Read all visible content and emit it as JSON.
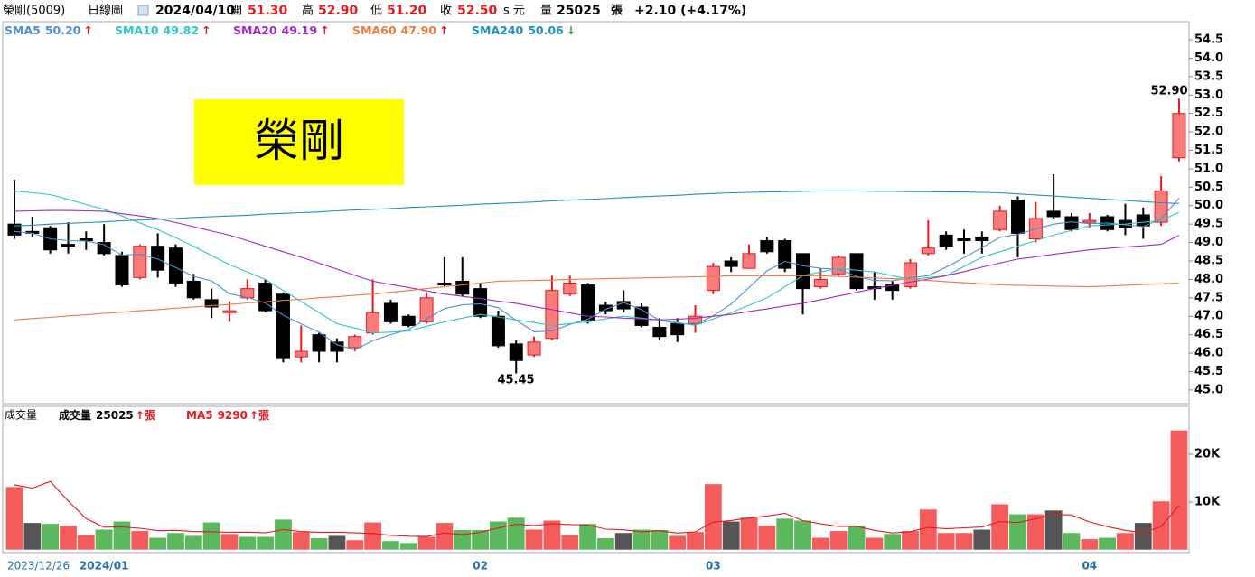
{
  "header": {
    "symbol": "榮剛(5009)",
    "period": "日線圖",
    "date": "2024/04/10",
    "open_label": "開",
    "open": "51.30",
    "high_label": "高",
    "high": "52.90",
    "low_label": "低",
    "low": "51.20",
    "close_label": "收",
    "close": "52.50",
    "currency": "s 元",
    "volume_label": "量",
    "volume": "25025",
    "volume_unit": "張",
    "change": "+2.10 (+4.17%)"
  },
  "chart_data": [
    {
      "type": "candlestick",
      "open": [
        49.5,
        49.3,
        49.4,
        48.95,
        49.1,
        49.0,
        48.65,
        48.05,
        48.9,
        48.85,
        47.95,
        47.45,
        47.1,
        47.5,
        47.9,
        47.6,
        45.9,
        46.5,
        46.3,
        46.15,
        46.55,
        47.35,
        47.0,
        46.85,
        47.9,
        47.95,
        47.75,
        47.0,
        46.25,
        45.95,
        46.4,
        47.6,
        47.85,
        47.3,
        47.4,
        47.25,
        46.7,
        46.8,
        46.8,
        47.7,
        48.5,
        48.3,
        49.05,
        49.05,
        48.7,
        47.8,
        48.15,
        48.7,
        47.8,
        47.85,
        47.8,
        48.7,
        49.2,
        49.1,
        49.15,
        49.35,
        50.15,
        49.1,
        49.85,
        49.7,
        49.55,
        49.7,
        49.6,
        49.75,
        49.55,
        51.3
      ],
      "high": [
        50.7,
        49.7,
        49.45,
        49.55,
        49.3,
        49.5,
        48.75,
        48.95,
        49.25,
        48.95,
        48.15,
        47.75,
        47.4,
        48.0,
        48.0,
        47.65,
        46.75,
        46.55,
        46.4,
        46.5,
        48.0,
        47.45,
        47.05,
        47.65,
        48.6,
        48.6,
        47.9,
        47.15,
        46.35,
        46.45,
        48.1,
        48.1,
        47.9,
        47.4,
        47.7,
        47.35,
        46.95,
        46.95,
        47.3,
        48.45,
        48.6,
        48.95,
        49.15,
        49.1,
        48.7,
        48.3,
        48.65,
        48.7,
        48.2,
        47.95,
        48.55,
        49.6,
        49.3,
        49.35,
        49.3,
        50.0,
        50.25,
        50.1,
        50.85,
        49.8,
        49.8,
        49.75,
        50.05,
        49.95,
        50.8,
        52.9
      ],
      "low": [
        49.1,
        49.15,
        48.7,
        48.7,
        48.8,
        48.65,
        47.8,
        48.0,
        48.05,
        47.8,
        47.45,
        46.95,
        46.85,
        47.45,
        47.1,
        45.75,
        45.75,
        45.75,
        45.75,
        46.05,
        46.5,
        46.8,
        46.7,
        46.8,
        47.8,
        47.55,
        46.95,
        46.15,
        45.45,
        45.9,
        46.35,
        47.55,
        46.8,
        47.05,
        47.1,
        46.7,
        46.35,
        46.3,
        46.55,
        47.6,
        48.2,
        48.3,
        48.7,
        48.2,
        47.05,
        47.75,
        48.1,
        47.7,
        47.45,
        47.45,
        47.75,
        48.65,
        48.8,
        48.7,
        48.7,
        49.3,
        48.6,
        49.0,
        49.65,
        49.3,
        49.4,
        49.3,
        49.2,
        49.1,
        49.45,
        51.2
      ],
      "close": [
        49.2,
        49.25,
        48.8,
        48.9,
        49.05,
        48.7,
        47.85,
        48.9,
        48.25,
        47.9,
        47.5,
        47.25,
        47.15,
        47.75,
        47.15,
        45.85,
        46.05,
        46.05,
        46.05,
        46.45,
        47.1,
        46.85,
        46.75,
        47.5,
        47.85,
        47.6,
        47.0,
        46.2,
        45.8,
        46.3,
        47.7,
        47.9,
        46.9,
        47.15,
        47.2,
        46.75,
        46.45,
        46.5,
        47.0,
        48.35,
        48.35,
        48.7,
        48.75,
        48.3,
        47.75,
        48.0,
        48.6,
        47.75,
        47.75,
        47.7,
        48.45,
        48.85,
        48.9,
        49.05,
        49.05,
        49.85,
        49.25,
        49.65,
        49.7,
        49.35,
        49.6,
        49.35,
        49.4,
        49.45,
        50.4,
        52.5
      ],
      "up_color": "#f87c7c",
      "up_line": "#e8191e",
      "down_color": "#000000",
      "ylim": [
        44.63,
        54.99
      ],
      "yticks": [
        {
          "value": 45,
          "label": "45.0"
        },
        {
          "value": 45.5,
          "label": "45.5"
        },
        {
          "value": 46,
          "label": "46.0"
        },
        {
          "value": 46.5,
          "label": "46.5"
        },
        {
          "value": 47,
          "label": "47.0"
        },
        {
          "value": 47.5,
          "label": "47.5"
        },
        {
          "value": 48,
          "label": "48.0"
        },
        {
          "value": 48.5,
          "label": "48.5"
        },
        {
          "value": 49,
          "label": "49.0"
        },
        {
          "value": 49.5,
          "label": "49.5"
        },
        {
          "value": 50,
          "label": "50.0"
        },
        {
          "value": 50.5,
          "label": "50.5"
        },
        {
          "value": 51,
          "label": "51.0"
        },
        {
          "value": 51.5,
          "label": "51.5"
        },
        {
          "value": 52,
          "label": "52.0"
        },
        {
          "value": 52.5,
          "label": "52.5"
        },
        {
          "value": 53,
          "label": "53.0"
        },
        {
          "value": 53.5,
          "label": "53.5"
        },
        {
          "value": 54,
          "label": "54.0"
        },
        {
          "value": 54.5,
          "label": "54.5"
        }
      ],
      "series": [
        {
          "name": "SMA5",
          "legend_value": "50.20",
          "arrow": "↑",
          "arrow_color": "#e8191e",
          "color": "#4a8fd6",
          "values": [
            49.3,
            49.25,
            49.1,
            49.05,
            49.04,
            48.94,
            48.66,
            48.68,
            48.55,
            48.32,
            48.08,
            47.96,
            47.61,
            47.51,
            47.36,
            47.03,
            46.79,
            46.57,
            46.23,
            46.09,
            46.34,
            46.5,
            46.64,
            46.93,
            47.21,
            47.31,
            47.34,
            47.23,
            46.89,
            46.58,
            46.6,
            46.78,
            46.92,
            47.19,
            47.37,
            47.18,
            46.89,
            46.81,
            46.78,
            47.01,
            47.33,
            47.78,
            48.23,
            48.49,
            48.37,
            48.3,
            48.28,
            48.08,
            47.97,
            47.96,
            48.05,
            48.1,
            48.33,
            48.59,
            48.86,
            49.14,
            49.22,
            49.37,
            49.5,
            49.56,
            49.51,
            49.53,
            49.48,
            49.43,
            49.64,
            50.2
          ]
        },
        {
          "name": "SMA10",
          "legend_value": "49.82",
          "arrow": "↑",
          "arrow_color": "#e8191e",
          "color": "#2cc6c6",
          "values": [
            50.4,
            50.35,
            50.3,
            50.17,
            50.03,
            49.9,
            49.72,
            49.53,
            49.35,
            49.13,
            48.9,
            48.65,
            48.4,
            48.2,
            48.0,
            47.7,
            47.4,
            47.1,
            46.8,
            46.68,
            46.55,
            46.57,
            46.6,
            46.73,
            46.85,
            46.95,
            47.05,
            46.98,
            46.9,
            46.83,
            46.75,
            46.8,
            46.85,
            46.93,
            47.0,
            46.95,
            46.9,
            46.83,
            46.75,
            46.93,
            47.1,
            47.3,
            47.5,
            47.8,
            48.1,
            48.2,
            48.3,
            48.25,
            48.2,
            48.1,
            48.0,
            48.05,
            48.1,
            48.35,
            48.6,
            48.75,
            48.9,
            49.05,
            49.2,
            49.33,
            49.45,
            49.48,
            49.5,
            49.55,
            49.6,
            49.82
          ]
        },
        {
          "name": "SMA20",
          "legend_value": "49.19",
          "arrow": "↑",
          "arrow_color": "#e8191e",
          "color": "#a526c9",
          "values": [
            49.85,
            49.86,
            49.87,
            49.87,
            49.86,
            49.85,
            49.78,
            49.72,
            49.65,
            49.54,
            49.43,
            49.31,
            49.2,
            49.05,
            48.9,
            48.75,
            48.6,
            48.44,
            48.28,
            48.11,
            47.95,
            47.86,
            47.78,
            47.69,
            47.6,
            47.54,
            47.48,
            47.41,
            47.35,
            47.26,
            47.18,
            47.09,
            47.0,
            46.98,
            46.95,
            46.93,
            46.9,
            46.92,
            46.95,
            47.0,
            47.05,
            47.13,
            47.2,
            47.28,
            47.35,
            47.45,
            47.55,
            47.65,
            47.75,
            47.84,
            47.93,
            48.01,
            48.1,
            48.21,
            48.33,
            48.44,
            48.55,
            48.61,
            48.68,
            48.74,
            48.8,
            48.84,
            48.88,
            48.91,
            48.95,
            49.19
          ]
        },
        {
          "name": "SMA60",
          "legend_value": "47.90",
          "arrow": "↑",
          "arrow_color": "#e8191e",
          "color": "#f0793a",
          "values": [
            46.9,
            46.94,
            46.97,
            47.01,
            47.04,
            47.08,
            47.11,
            47.15,
            47.18,
            47.22,
            47.25,
            47.29,
            47.32,
            47.36,
            47.39,
            47.43,
            47.46,
            47.5,
            47.53,
            47.57,
            47.6,
            47.65,
            47.7,
            47.75,
            47.8,
            47.85,
            47.9,
            47.95,
            47.96,
            47.97,
            47.98,
            48.0,
            48.01,
            48.02,
            48.03,
            48.04,
            48.05,
            48.06,
            48.07,
            48.08,
            48.1,
            48.1,
            48.1,
            48.1,
            48.1,
            48.1,
            48.08,
            48.06,
            48.04,
            48.02,
            48.0,
            47.97,
            47.94,
            47.91,
            47.88,
            47.85,
            47.84,
            47.83,
            47.82,
            47.81,
            47.8,
            47.82,
            47.84,
            47.86,
            47.88,
            47.9
          ]
        },
        {
          "name": "SMA240",
          "legend_value": "50.06",
          "arrow": "↓",
          "arrow_color": "#1a9a3a",
          "color": "#1f8fbf",
          "values": [
            49.45,
            49.47,
            49.5,
            49.52,
            49.54,
            49.56,
            49.59,
            49.61,
            49.63,
            49.65,
            49.68,
            49.7,
            49.72,
            49.74,
            49.77,
            49.79,
            49.81,
            49.83,
            49.86,
            49.88,
            49.9,
            49.92,
            49.95,
            49.97,
            49.99,
            50.01,
            50.04,
            50.06,
            50.08,
            50.1,
            50.13,
            50.15,
            50.17,
            50.19,
            50.22,
            50.24,
            50.26,
            50.28,
            50.31,
            50.33,
            50.35,
            50.36,
            50.37,
            50.38,
            50.39,
            50.4,
            50.4,
            50.4,
            50.39,
            50.39,
            50.38,
            50.38,
            50.37,
            50.37,
            50.36,
            50.35,
            50.32,
            50.29,
            50.26,
            50.23,
            50.2,
            50.17,
            50.14,
            50.11,
            50.08,
            50.06
          ]
        }
      ],
      "annotations": [
        "52.90",
        "45.45"
      ],
      "watermark": "榮剛"
    },
    {
      "type": "bar",
      "categories": [
        "2023/12/26",
        null,
        null,
        null,
        null,
        "2024/01",
        null,
        null,
        null,
        null,
        null,
        null,
        null,
        null,
        null,
        null,
        null,
        null,
        null,
        null,
        null,
        null,
        null,
        null,
        null,
        null,
        "02",
        null,
        null,
        null,
        null,
        null,
        null,
        null,
        null,
        null,
        null,
        null,
        null,
        "03",
        null,
        null,
        null,
        null,
        null,
        null,
        null,
        null,
        null,
        null,
        null,
        null,
        null,
        null,
        null,
        null,
        null,
        null,
        null,
        null,
        "04",
        null,
        null,
        null,
        null,
        null
      ],
      "title": "成交量",
      "legend_name": "成交量",
      "legend_value": "25025",
      "legend_arrow": "↑",
      "unit": "張",
      "values": [
        13200,
        5700,
        5500,
        5100,
        3200,
        4300,
        6000,
        4000,
        2600,
        3600,
        3000,
        5800,
        3400,
        2800,
        2800,
        6400,
        3800,
        2500,
        3000,
        2100,
        5800,
        1900,
        1500,
        2800,
        5700,
        4200,
        4200,
        6000,
        6800,
        4300,
        6200,
        3200,
        5500,
        2500,
        3600,
        4300,
        4200,
        3000,
        3800,
        13800,
        6000,
        6800,
        5100,
        6600,
        6200,
        2600,
        4000,
        5100,
        2600,
        3400,
        4000,
        8500,
        3600,
        3600,
        4300,
        9600,
        7500,
        7500,
        8300,
        3600,
        2300,
        2600,
        3600,
        5700,
        10200,
        25025
      ],
      "colors": [
        "#f45b5b",
        "#555555",
        "#5cb85c",
        "#f45b5b",
        "#f45b5b",
        "#5cb85c",
        "#5cb85c",
        "#f45b5b",
        "#5cb85c",
        "#5cb85c",
        "#5cb85c",
        "#5cb85c",
        "#f45b5b",
        "#5cb85c",
        "#5cb85c",
        "#5cb85c",
        "#f45b5b",
        "#5cb85c",
        "#555555",
        "#f45b5b",
        "#f45b5b",
        "#5cb85c",
        "#5cb85c",
        "#f45b5b",
        "#f45b5b",
        "#5cb85c",
        "#5cb85c",
        "#5cb85c",
        "#5cb85c",
        "#f45b5b",
        "#f45b5b",
        "#f45b5b",
        "#5cb85c",
        "#5cb85c",
        "#555555",
        "#5cb85c",
        "#5cb85c",
        "#f45b5b",
        "#f45b5b",
        "#f45b5b",
        "#555555",
        "#f45b5b",
        "#f45b5b",
        "#5cb85c",
        "#5cb85c",
        "#f45b5b",
        "#f45b5b",
        "#5cb85c",
        "#f45b5b",
        "#5cb85c",
        "#f45b5b",
        "#f45b5b",
        "#f45b5b",
        "#f45b5b",
        "#555555",
        "#f45b5b",
        "#5cb85c",
        "#f45b5b",
        "#555555",
        "#5cb85c",
        "#f45b5b",
        "#5cb85c",
        "#f45b5b",
        "#555555",
        "#f45b5b",
        "#f45b5b"
      ],
      "series": [
        {
          "name": "MA5",
          "legend_value": "9290",
          "arrow": "↑",
          "color": "#e8191e",
          "values": [
            13600,
            12900,
            14300,
            10200,
            6540,
            4760,
            4820,
            4520,
            4020,
            4100,
            3840,
            3800,
            3680,
            3720,
            3560,
            4240,
            3840,
            3660,
            3700,
            3560,
            3440,
            3060,
            2860,
            2820,
            3540,
            3220,
            3680,
            4580,
            5380,
            5100,
            5500,
            5300,
            5200,
            4340,
            4200,
            3820,
            4020,
            3520,
            3780,
            5820,
            6160,
            6680,
            7100,
            7660,
            6140,
            5460,
            4900,
            4900,
            4100,
            3540,
            3820,
            4720,
            4420,
            4620,
            4800,
            5920,
            5720,
            6500,
            7440,
            7300,
            5840,
            4860,
            4080,
            3560,
            4880,
            9290
          ]
        }
      ],
      "ylim": [
        0,
        30000
      ],
      "yticks": [
        {
          "value": 10000,
          "label": "10K"
        },
        {
          "value": 20000,
          "label": "20K"
        }
      ]
    }
  ]
}
